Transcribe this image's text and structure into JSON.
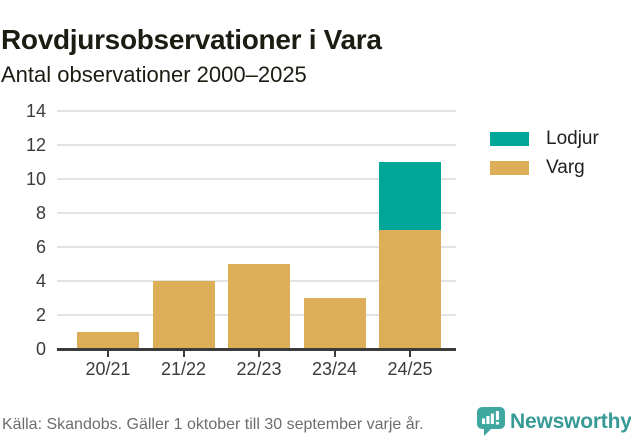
{
  "header": {
    "title": "Rovdjursobservationer i Vara",
    "subtitle": "Antal observationer 2000–2025"
  },
  "chart_data": {
    "type": "bar",
    "stacked": true,
    "title": "Rovdjursobservationer i Vara",
    "subtitle": "Antal observationer 2000–2025",
    "categories": [
      "20/21",
      "21/22",
      "22/23",
      "23/24",
      "24/25"
    ],
    "series": [
      {
        "name": "Varg",
        "color": "#DBAE57",
        "values": [
          1,
          4,
          5,
          3,
          7
        ]
      },
      {
        "name": "Lodjur",
        "color": "#00A698",
        "values": [
          0,
          0,
          0,
          0,
          4
        ]
      }
    ],
    "totals": [
      1,
      4,
      5,
      3,
      11
    ],
    "xlabel": "",
    "ylabel": "",
    "ylim": [
      0,
      14
    ],
    "yticks": [
      0,
      2,
      4,
      6,
      8,
      10,
      12,
      14
    ],
    "grid": "horizontal",
    "legend_position": "right",
    "legend": [
      {
        "label": "Lodjur",
        "color": "#00A698"
      },
      {
        "label": "Varg",
        "color": "#DBAE57"
      }
    ]
  },
  "footer": {
    "source": "Källa: Skandobs. Gäller 1 oktober till 30 september varje år.",
    "brand": "Newsworthy"
  },
  "colors": {
    "lodjur": "#00A698",
    "varg": "#DBAE57",
    "brand_teal": "#3EA79F",
    "text_dark": "#1c1c13",
    "axis": "#3b3b3b",
    "gridline": "#e3e3e3",
    "source_gray": "#6d6d6d"
  }
}
